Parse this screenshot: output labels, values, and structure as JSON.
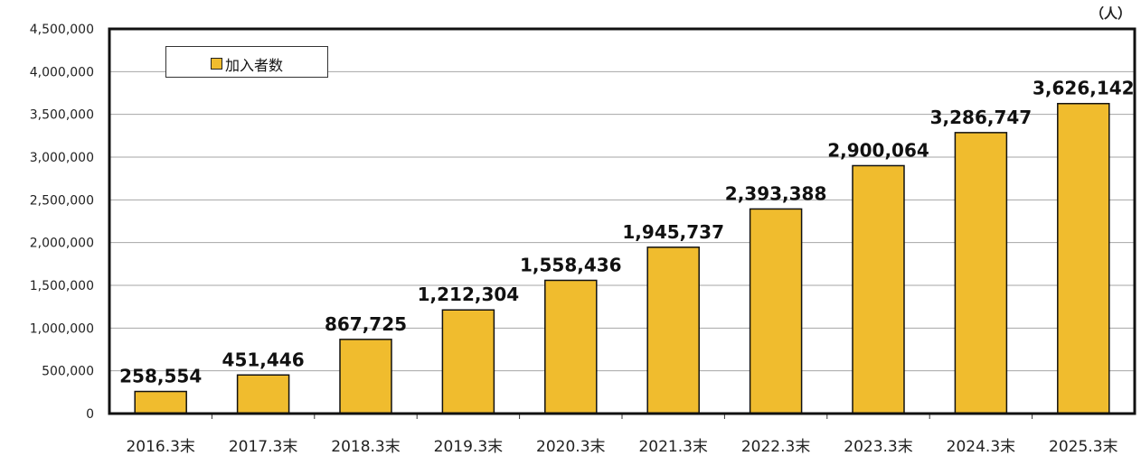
{
  "chart_data": {
    "type": "bar",
    "unit": "（人）",
    "categories": [
      "2016.3末",
      "2017.3末",
      "2018.3末",
      "2019.3末",
      "2020.3末",
      "2021.3末",
      "2022.3末",
      "2023.3末",
      "2024.3末",
      "2025.3末"
    ],
    "series": [
      {
        "name": "加入者数",
        "values": [
          258554,
          451446,
          867725,
          1212304,
          1558436,
          1945737,
          2393388,
          2900064,
          3286747,
          3626142
        ],
        "labels": [
          "258,554",
          "451,446",
          "867,725",
          "1,212,304",
          "1,558,436",
          "1,945,737",
          "2,393,388",
          "2,900,064",
          "3,286,747",
          "3,626,142"
        ]
      }
    ],
    "ylim": [
      0,
      4500000
    ],
    "yticks": [
      0,
      500000,
      1000000,
      1500000,
      2000000,
      2500000,
      3000000,
      3500000,
      4000000,
      4500000
    ],
    "ytick_labels": [
      "0",
      "500,000",
      "1,000,000",
      "1,500,000",
      "2,000,000",
      "2,500,000",
      "3,000,000",
      "3,500,000",
      "4,000,000",
      "4,500,000"
    ],
    "grid": true,
    "legend_position": "top-left",
    "bar_color": "#F0BC2E"
  }
}
